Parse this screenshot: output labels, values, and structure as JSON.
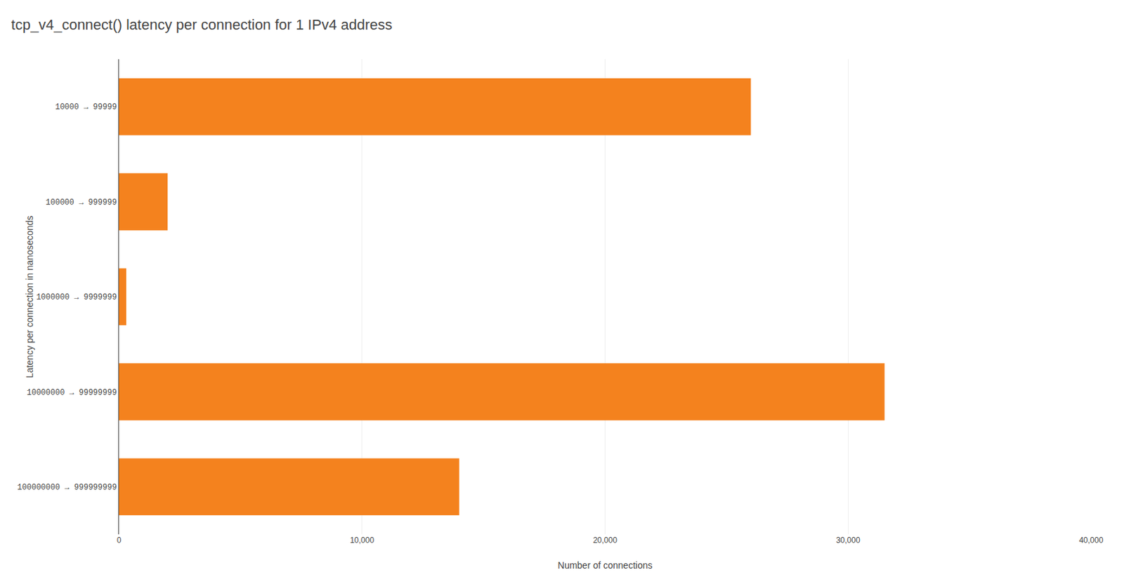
{
  "chart_data": {
    "type": "bar",
    "orientation": "horizontal",
    "title": "tcp_v4_connect() latency per connection for 1 IPv4 address",
    "xlabel": "Number of connections",
    "ylabel": "Latency per connection in nanoseconds",
    "categories": [
      "10000 → 99999",
      "100000 → 999999",
      "1000000 → 9999999",
      "10000000 → 99999999",
      "100000000 → 999999999"
    ],
    "values": [
      26000,
      2000,
      300,
      31500,
      14000
    ],
    "color": "#f4821e",
    "xlim": [
      0,
      40000
    ],
    "xticks": [
      0,
      {
        "value": 10000,
        "label": "10,000"
      },
      {
        "value": 20000,
        "label": "20,000"
      },
      {
        "value": 30000,
        "label": "30,000"
      },
      {
        "value": 40000,
        "label": "40,000"
      }
    ],
    "grid": true
  }
}
